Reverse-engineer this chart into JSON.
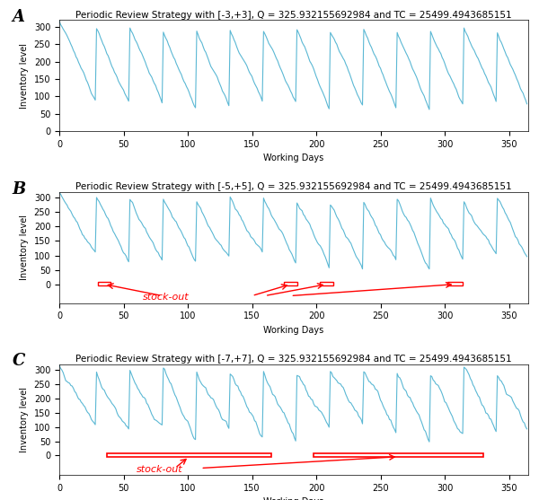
{
  "title_A": "Periodic Review Strategy with [-3,+3], Q = 325.932155692984 and TC = 25499.4943685151",
  "title_B": "Periodic Review Strategy with [-5,+5], Q = 325.932155692984 and TC = 25499.4943685151",
  "title_C": "Periodic Review Strategy with [-7,+7], Q = 325.932155692984 and TC = 25499.4943685151",
  "xlabel": "Working Days",
  "ylabel": "Inventory level",
  "label_A": "A",
  "label_B": "B",
  "label_C": "C",
  "line_color": "#5bb8d4",
  "line_width": 0.8,
  "xlim": [
    0,
    365
  ],
  "ylim": [
    0,
    320
  ],
  "yticks": [
    0,
    50,
    100,
    150,
    200,
    250,
    300
  ],
  "xticks": [
    0,
    50,
    100,
    150,
    200,
    250,
    300,
    350
  ],
  "stockout_color": "red",
  "stockout_label": "stock-out",
  "bg_color": "white",
  "title_fontsize": 7.5,
  "tick_fontsize": 7,
  "label_fontsize": 7,
  "panel_label_fontsize": 13
}
